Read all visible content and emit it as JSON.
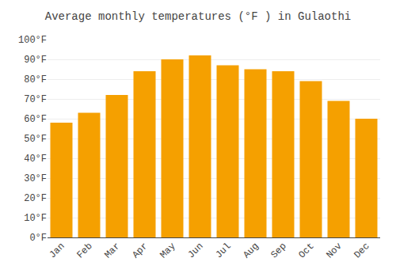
{
  "chart_data": {
    "type": "bar",
    "title": "Average monthly temperatures (°F ) in Gulaothi",
    "categories": [
      "Jan",
      "Feb",
      "Mar",
      "Apr",
      "May",
      "Jun",
      "Jul",
      "Aug",
      "Sep",
      "Oct",
      "Nov",
      "Dec"
    ],
    "values": [
      58,
      63,
      72,
      84,
      90,
      92,
      87,
      85,
      84,
      79,
      69,
      60
    ],
    "color": "#F5A000",
    "ylim": [
      0,
      100
    ],
    "yticks": [
      {
        "value": 0,
        "label": "0°F"
      },
      {
        "value": 10,
        "label": "10°F"
      },
      {
        "value": 20,
        "label": "20°F"
      },
      {
        "value": 30,
        "label": "30°F"
      },
      {
        "value": 40,
        "label": "40°F"
      },
      {
        "value": 50,
        "label": "50°F"
      },
      {
        "value": 60,
        "label": "60°F"
      },
      {
        "value": 70,
        "label": "70°F"
      },
      {
        "value": 80,
        "label": "80°F"
      },
      {
        "value": 90,
        "label": "90°F"
      },
      {
        "value": 100,
        "label": "100°F"
      }
    ],
    "grid": true
  }
}
